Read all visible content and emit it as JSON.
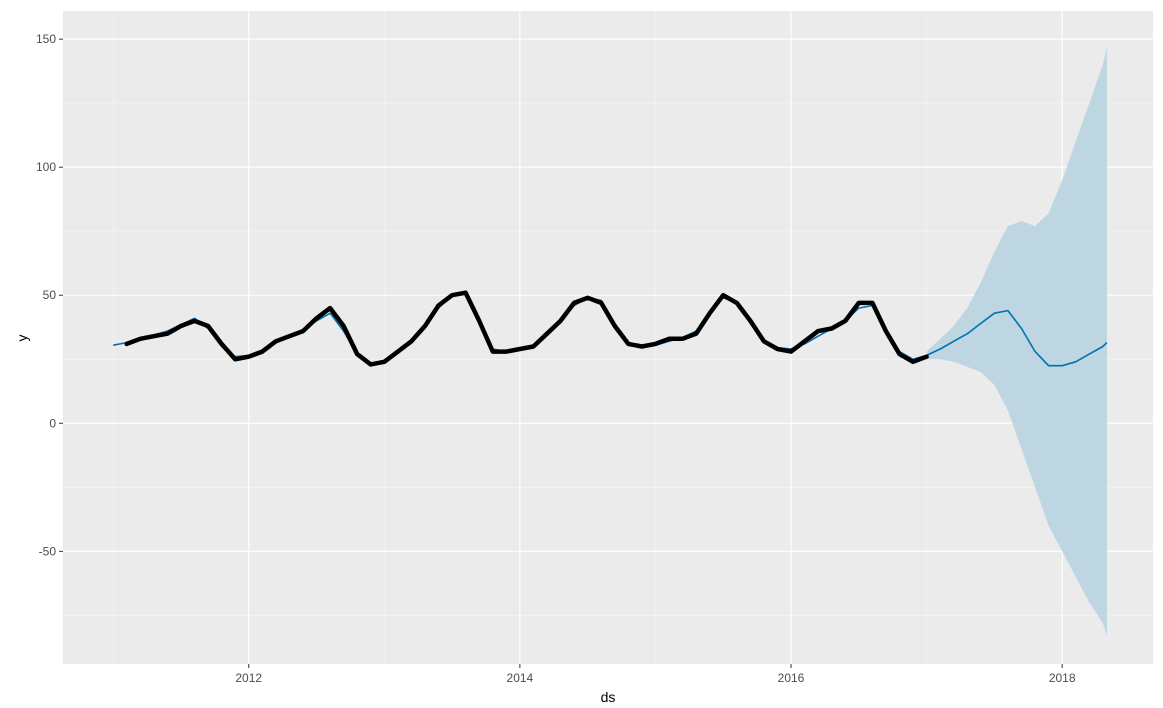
{
  "chart_data": {
    "type": "line",
    "title": "",
    "xlabel": "ds",
    "ylabel": "y",
    "xlim": [
      2010.63,
      2018.67
    ],
    "ylim": [
      -94,
      161
    ],
    "grid": true,
    "legend": "none",
    "x_ticks": [
      {
        "value": 2012,
        "label": "2012"
      },
      {
        "value": 2014,
        "label": "2014"
      },
      {
        "value": 2016,
        "label": "2016"
      },
      {
        "value": 2018,
        "label": "2018"
      }
    ],
    "y_ticks": [
      {
        "value": -50,
        "label": "-50"
      },
      {
        "value": 0,
        "label": "0"
      },
      {
        "value": 50,
        "label": "50"
      },
      {
        "value": 100,
        "label": "100"
      },
      {
        "value": 150,
        "label": "150"
      }
    ],
    "colors": {
      "panel": "#ebebeb",
      "grid_major": "#ffffff",
      "grid_minor": "#f5f5f5",
      "observed": "#000000",
      "forecast": "#0072b2",
      "interval": "#b8d4e0"
    },
    "series": [
      {
        "role": "observed",
        "x": [
          2011.1,
          2011.2,
          2011.3,
          2011.4,
          2011.5,
          2011.6,
          2011.7,
          2011.8,
          2011.9,
          2012.0,
          2012.1,
          2012.2,
          2012.3,
          2012.4,
          2012.5,
          2012.6,
          2012.7,
          2012.8,
          2012.9,
          2013.0,
          2013.1,
          2013.2,
          2013.3,
          2013.4,
          2013.5,
          2013.6,
          2013.7,
          2013.8,
          2013.9,
          2014.0,
          2014.1,
          2014.2,
          2014.3,
          2014.4,
          2014.5,
          2014.6,
          2014.7,
          2014.8,
          2014.9,
          2015.0,
          2015.1,
          2015.2,
          2015.3,
          2015.4,
          2015.5,
          2015.6,
          2015.7,
          2015.8,
          2015.9,
          2016.0,
          2016.1,
          2016.2,
          2016.3,
          2016.4,
          2016.5,
          2016.6,
          2016.7,
          2016.8,
          2016.9,
          2017.0
        ],
        "y": [
          31,
          33,
          34,
          35,
          38,
          40,
          38,
          31,
          25,
          26,
          28,
          32,
          34,
          36,
          41,
          45,
          38,
          27,
          23,
          24,
          28,
          32,
          38,
          46,
          50,
          51,
          40,
          28,
          28,
          29,
          30,
          35,
          40,
          47,
          49,
          47,
          38,
          31,
          30,
          31,
          33,
          33,
          35,
          43,
          50,
          47,
          40,
          32,
          29,
          28,
          32,
          36,
          37,
          40,
          47,
          47,
          36,
          27,
          24,
          26
        ]
      },
      {
        "role": "forecast",
        "x": [
          2011.0,
          2011.1,
          2011.2,
          2011.3,
          2011.4,
          2011.5,
          2011.6,
          2011.7,
          2011.8,
          2011.9,
          2012.0,
          2012.1,
          2012.2,
          2012.3,
          2012.4,
          2012.5,
          2012.6,
          2012.7,
          2012.8,
          2012.9,
          2013.0,
          2013.1,
          2013.2,
          2013.3,
          2013.4,
          2013.5,
          2013.6,
          2013.7,
          2013.8,
          2013.9,
          2014.0,
          2014.1,
          2014.2,
          2014.3,
          2014.4,
          2014.5,
          2014.6,
          2014.7,
          2014.8,
          2014.9,
          2015.0,
          2015.1,
          2015.2,
          2015.3,
          2015.4,
          2015.5,
          2015.6,
          2015.7,
          2015.8,
          2015.9,
          2016.0,
          2016.1,
          2016.2,
          2016.3,
          2016.4,
          2016.5,
          2016.6,
          2016.7,
          2016.8,
          2016.9,
          2017.0,
          2017.1,
          2017.2,
          2017.3,
          2017.4,
          2017.5,
          2017.6,
          2017.7,
          2017.8,
          2017.9,
          2018.0,
          2018.1,
          2018.2,
          2018.3,
          2018.33
        ],
        "y": [
          30.5,
          31.5,
          33,
          34.5,
          36,
          38.5,
          41,
          37,
          30,
          26,
          26.5,
          28.5,
          31.5,
          34,
          36.5,
          40,
          43,
          36,
          27,
          23.5,
          24.5,
          28,
          32,
          37.5,
          45,
          50,
          50.5,
          40,
          29,
          28,
          29,
          30.5,
          34.5,
          40,
          46,
          49,
          48,
          39,
          31,
          30,
          30.5,
          32,
          33.5,
          36,
          43,
          49,
          47,
          39,
          32,
          29.5,
          29,
          31,
          34,
          37,
          40,
          45,
          46,
          37,
          28,
          25,
          26.5,
          29,
          32,
          35,
          39,
          43,
          44,
          37,
          28,
          22.5,
          22.5,
          24,
          27,
          30,
          31.5
        ]
      }
    ],
    "interval": {
      "x": [
        2017.0,
        2017.1,
        2017.2,
        2017.3,
        2017.4,
        2017.5,
        2017.6,
        2017.7,
        2017.8,
        2017.9,
        2018.0,
        2018.1,
        2018.2,
        2018.3,
        2018.33
      ],
      "upper": [
        28,
        33,
        38,
        45,
        55,
        67,
        77,
        79,
        77,
        82,
        95,
        110,
        125,
        140,
        147
      ],
      "lower": [
        25,
        25,
        24,
        22,
        20,
        15,
        5,
        -10,
        -25,
        -40,
        -50,
        -60,
        -70,
        -78,
        -83
      ]
    }
  }
}
